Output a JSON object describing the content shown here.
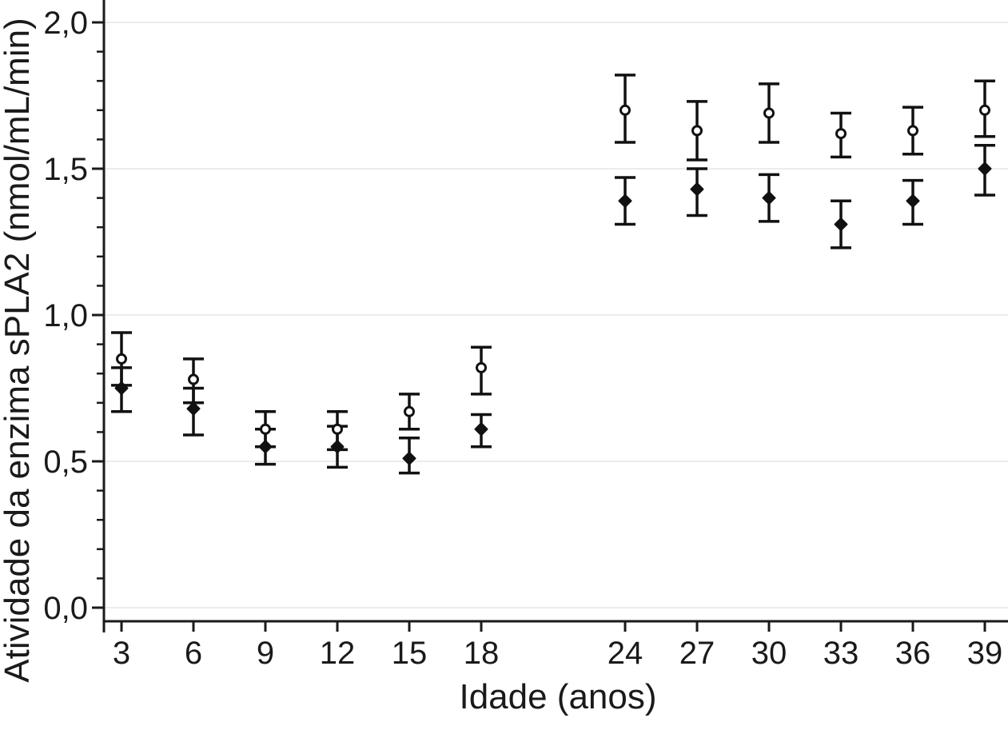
{
  "chart_data": {
    "type": "scatter",
    "subtype": "point-estimates-with-error-bars",
    "title": "",
    "xlabel": "Idade (anos)",
    "ylabel": "Atividade da enzima sPLA2 (nmol/mL/min)",
    "ylim": [
      0.0,
      2.05
    ],
    "y_ticks": [
      0.0,
      0.5,
      1.0,
      1.5,
      2.0
    ],
    "y_tick_labels": [
      "0,0",
      "0,5",
      "1,0",
      "1,5",
      "2,0"
    ],
    "y_minor_tick_step": 0.1,
    "x_ticks": [
      3,
      6,
      9,
      12,
      15,
      18,
      24,
      27,
      30,
      33,
      36,
      39
    ],
    "x_tick_labels": [
      "3",
      "6",
      "9",
      "12",
      "15",
      "18",
      "24",
      "27",
      "30",
      "33",
      "36",
      "39"
    ],
    "x_gap_note": "no data between ages 18 and 24",
    "grid": "horizontal lines at major y ticks",
    "legend": "none visible",
    "series": [
      {
        "name": "open-circles-group",
        "marker": "open-circle",
        "x": [
          3,
          6,
          9,
          12,
          15,
          18,
          24,
          27,
          30,
          33,
          36,
          39
        ],
        "y": [
          0.85,
          0.78,
          0.61,
          0.61,
          0.67,
          0.82,
          1.7,
          1.63,
          1.69,
          1.62,
          1.63,
          1.7
        ],
        "lo": [
          0.76,
          0.7,
          0.55,
          0.54,
          0.61,
          0.73,
          1.59,
          1.53,
          1.59,
          1.54,
          1.55,
          1.61
        ],
        "hi": [
          0.94,
          0.85,
          0.67,
          0.67,
          0.73,
          0.89,
          1.82,
          1.73,
          1.79,
          1.69,
          1.71,
          1.8
        ]
      },
      {
        "name": "filled-diamonds-group",
        "marker": "filled-diamond",
        "x": [
          3,
          6,
          9,
          12,
          15,
          18,
          24,
          27,
          30,
          33,
          36,
          39
        ],
        "y": [
          0.75,
          0.68,
          0.55,
          0.55,
          0.51,
          0.61,
          1.39,
          1.43,
          1.4,
          1.31,
          1.39,
          1.5
        ],
        "lo": [
          0.67,
          0.59,
          0.49,
          0.48,
          0.46,
          0.55,
          1.31,
          1.34,
          1.32,
          1.23,
          1.31,
          1.41
        ],
        "hi": [
          0.82,
          0.75,
          0.61,
          0.62,
          0.58,
          0.66,
          1.47,
          1.5,
          1.48,
          1.39,
          1.46,
          1.58
        ]
      }
    ],
    "colors": {
      "axis": "#1a1a1a",
      "gridline": "#ececec",
      "marker_stroke": "#111111",
      "filled_marker_fill": "#111111",
      "open_marker_fill": "#ffffff",
      "background": "#ffffff"
    }
  }
}
